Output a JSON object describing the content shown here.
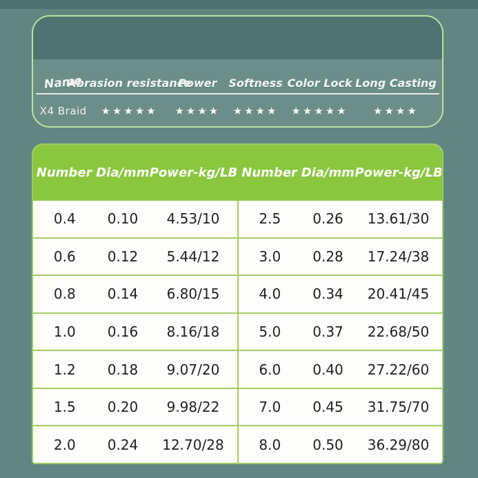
{
  "colors": {
    "page_background": "#618682",
    "card_top_strip": "#4e7370",
    "card_panel": "#6c8e89",
    "card_border_green": "#bde29c",
    "table_header_green": "#8bc63f",
    "table_grid_green": "#a3cc63",
    "star_color": "#f5f9f4"
  },
  "rating_card": {
    "headers": [
      "Name",
      "Abrasion resistance",
      "Power",
      "Softness",
      "Color Lock",
      "Long Casting"
    ],
    "product": "X4 Braid",
    "stars": [
      "★★★★★",
      "★★★★",
      "★★★★",
      "★★★★★",
      "★★★★"
    ],
    "ratings": [
      5,
      4,
      4,
      5,
      4
    ]
  },
  "spec_table": {
    "headers": [
      "Number",
      "Dia/mm",
      "Power-kg/LB"
    ],
    "left_rows": [
      [
        "0.4",
        "0.10",
        "4.53/10"
      ],
      [
        "0.6",
        "0.12",
        "5.44/12"
      ],
      [
        "0.8",
        "0.14",
        "6.80/15"
      ],
      [
        "1.0",
        "0.16",
        "8.16/18"
      ],
      [
        "1.2",
        "0.18",
        "9.07/20"
      ],
      [
        "1.5",
        "0.20",
        "9.98/22"
      ],
      [
        "2.0",
        "0.24",
        "12.70/28"
      ]
    ],
    "right_rows": [
      [
        "2.5",
        "0.26",
        "13.61/30"
      ],
      [
        "3.0",
        "0.28",
        "17.24/38"
      ],
      [
        "4.0",
        "0.34",
        "20.41/45"
      ],
      [
        "5.0",
        "0.37",
        "22.68/50"
      ],
      [
        "6.0",
        "0.40",
        "27.22/60"
      ],
      [
        "7.0",
        "0.45",
        "31.75/70"
      ],
      [
        "8.0",
        "0.50",
        "36.29/80"
      ]
    ]
  }
}
